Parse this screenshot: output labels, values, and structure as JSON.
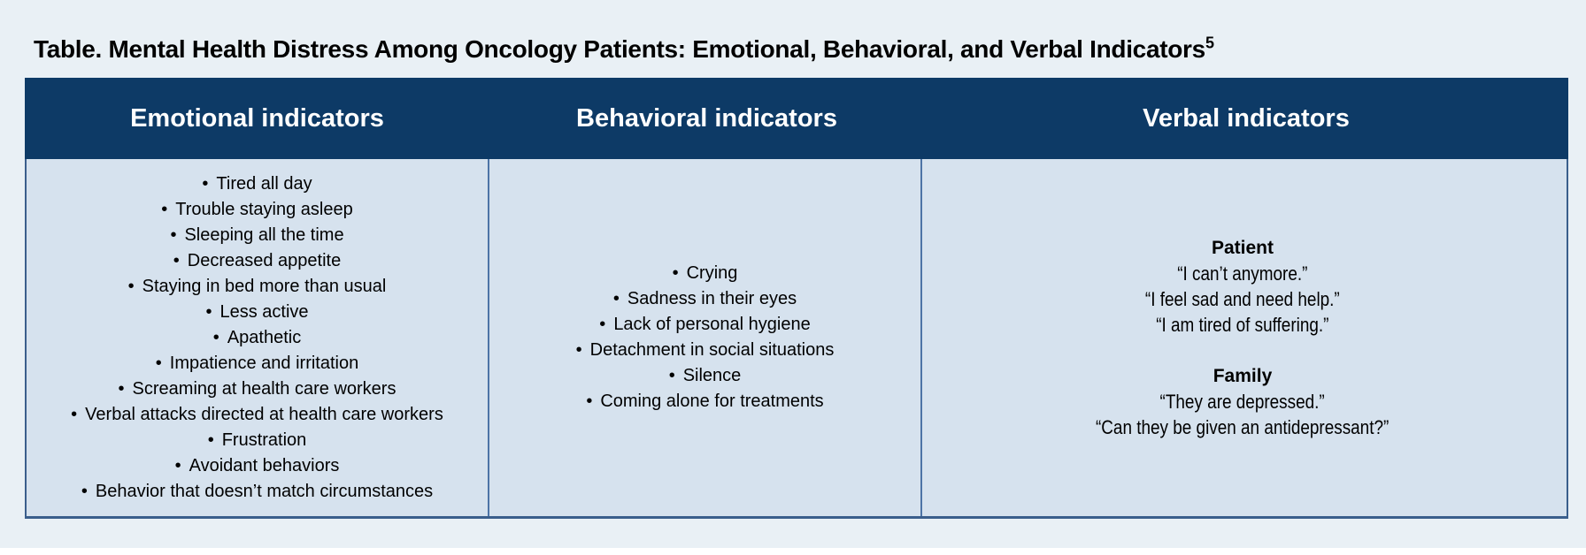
{
  "title": {
    "text": "Table. Mental Health Distress Among Oncology Patients: Emotional, Behavioral, and Verbal Indicators",
    "reference": "5"
  },
  "table": {
    "columns": [
      {
        "header": "Emotional indicators",
        "items": [
          "Tired all day",
          "Trouble staying asleep",
          "Sleeping all the time",
          "Decreased appetite",
          "Staying in bed more than usual",
          "Less active",
          "Apathetic",
          "Impatience and irritation",
          "Screaming at health care workers",
          "Verbal attacks directed at health care workers",
          "Frustration",
          "Avoidant behaviors",
          "Behavior that doesn’t match circumstances"
        ]
      },
      {
        "header": "Behavioral indicators",
        "items": [
          "Crying",
          "Sadness in their eyes",
          "Lack of personal hygiene",
          "Detachment in social situations",
          "Silence",
          "Coming alone for treatments"
        ]
      },
      {
        "header": "Verbal indicators",
        "groups": [
          {
            "label": "Patient",
            "quotes": [
              "“I can’t anymore.”",
              "“I feel sad and need help.”",
              "“I am tired of suffering.”"
            ]
          },
          {
            "label": "Family",
            "quotes": [
              "“They are depressed.”",
              "“Can they be given an antidepressant?”"
            ]
          }
        ]
      }
    ]
  },
  "colors": {
    "page_bg": "#e9f0f5",
    "header_bg": "#0d3a66",
    "header_text": "#ffffff",
    "cell_bg": "#d6e2ee",
    "outer_border": "#3a5e8c",
    "column_divider": "#4d74a6",
    "body_text": "#000000"
  }
}
